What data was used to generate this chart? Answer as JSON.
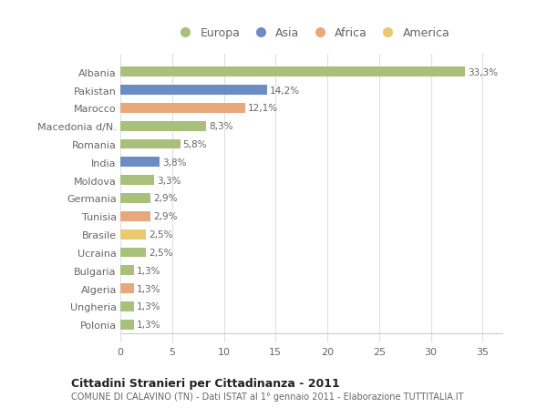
{
  "countries": [
    "Albania",
    "Pakistan",
    "Marocco",
    "Macedonia d/N.",
    "Romania",
    "India",
    "Moldova",
    "Germania",
    "Tunisia",
    "Brasile",
    "Ucraina",
    "Bulgaria",
    "Algeria",
    "Ungheria",
    "Polonia"
  ],
  "values": [
    33.3,
    14.2,
    12.1,
    8.3,
    5.8,
    3.8,
    3.3,
    2.9,
    2.9,
    2.5,
    2.5,
    1.3,
    1.3,
    1.3,
    1.3
  ],
  "labels": [
    "33,3%",
    "14,2%",
    "12,1%",
    "8,3%",
    "5,8%",
    "3,8%",
    "3,3%",
    "2,9%",
    "2,9%",
    "2,5%",
    "2,5%",
    "1,3%",
    "1,3%",
    "1,3%",
    "1,3%"
  ],
  "colors": [
    "#a8c07a",
    "#6b8dc4",
    "#e8a87c",
    "#a8c07a",
    "#a8c07a",
    "#6b8dc4",
    "#a8c07a",
    "#a8c07a",
    "#e8a87c",
    "#e8c96e",
    "#a8c07a",
    "#a8c07a",
    "#e8a87c",
    "#a8c07a",
    "#a8c07a"
  ],
  "legend_labels": [
    "Europa",
    "Asia",
    "Africa",
    "America"
  ],
  "legend_colors": [
    "#a8c07a",
    "#6b8dc4",
    "#e8a87c",
    "#e8c96e"
  ],
  "title": "Cittadini Stranieri per Cittadinanza - 2011",
  "subtitle": "COMUNE DI CALAVINO (TN) - Dati ISTAT al 1° gennaio 2011 - Elaborazione TUTTITALIA.IT",
  "xlim": [
    0,
    37
  ],
  "xticks": [
    0,
    5,
    10,
    15,
    20,
    25,
    30,
    35
  ],
  "background_color": "#ffffff",
  "grid_color": "#e0e0e0",
  "bar_height": 0.55
}
